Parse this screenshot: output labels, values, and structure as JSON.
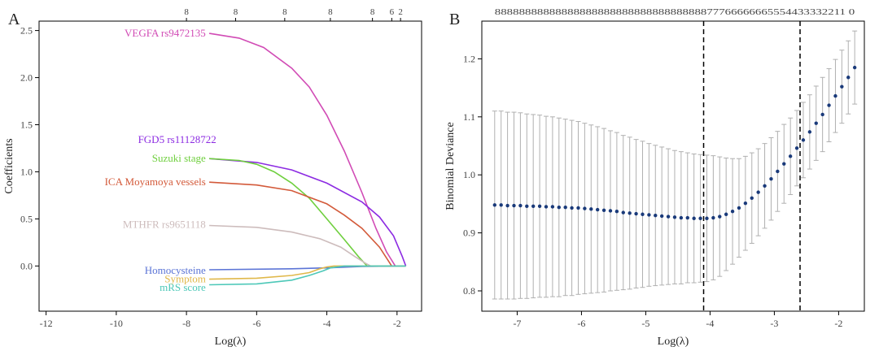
{
  "chart_data": [
    {
      "panel": "A",
      "type": "line",
      "xlabel": "Log(λ)",
      "ylabel": "Coefficients",
      "xlim": [
        -12.2,
        -1.3
      ],
      "ylim": [
        -0.48,
        2.6
      ],
      "xticks": [
        -12,
        -10,
        -8,
        -6,
        -4,
        -2
      ],
      "yticks": [
        0.0,
        0.5,
        1.0,
        1.5,
        2.0,
        2.5
      ],
      "top_axis": {
        "positions": [
          -8,
          -6.6,
          -5.2,
          -3.9,
          -2.7,
          -2.15,
          -1.9
        ],
        "labels": [
          "8",
          "8",
          "8",
          "8",
          "8",
          "6",
          "2"
        ]
      },
      "series": [
        {
          "name": "VEGFA rs9472135",
          "color": "#d14bb5",
          "x": [
            -7.35,
            -6.5,
            -5.8,
            -5.0,
            -4.5,
            -4.0,
            -3.5,
            -3.0,
            -2.6,
            -2.3,
            -2.05
          ],
          "y": [
            2.47,
            2.42,
            2.32,
            2.1,
            1.9,
            1.6,
            1.22,
            0.78,
            0.4,
            0.15,
            0.0
          ]
        },
        {
          "name": "FGD5 rs11128722",
          "color": "#8c2be2",
          "x": [
            -7.35,
            -6.0,
            -5.0,
            -4.0,
            -3.0,
            -2.5,
            -2.1,
            -1.85,
            -1.75
          ],
          "y": [
            1.14,
            1.1,
            1.02,
            0.88,
            0.68,
            0.52,
            0.32,
            0.1,
            0.0
          ]
        },
        {
          "name": "Suzuki stage",
          "color": "#6fcf3e",
          "x": [
            -7.35,
            -6.5,
            -6.0,
            -5.5,
            -5.0,
            -4.5,
            -4.0,
            -3.5,
            -3.1,
            -2.85
          ],
          "y": [
            1.14,
            1.12,
            1.08,
            1.0,
            0.88,
            0.72,
            0.5,
            0.28,
            0.1,
            0.0
          ]
        },
        {
          "name": "ICA Moyamoya vessels",
          "color": "#d35a3a",
          "x": [
            -7.35,
            -6.0,
            -5.0,
            -4.0,
            -3.5,
            -3.0,
            -2.5,
            -2.15
          ],
          "y": [
            0.89,
            0.86,
            0.8,
            0.66,
            0.54,
            0.4,
            0.2,
            0.0
          ]
        },
        {
          "name": "MTHFR rs9651118",
          "color": "#cdbcbc",
          "x": [
            -7.35,
            -6.0,
            -5.0,
            -4.2,
            -3.6,
            -3.2,
            -2.9,
            -2.75
          ],
          "y": [
            0.43,
            0.41,
            0.36,
            0.29,
            0.2,
            0.1,
            0.03,
            0.0
          ]
        },
        {
          "name": "Homocysteine",
          "color": "#5b74d6",
          "x": [
            -7.35,
            -5.0,
            -4.0,
            -3.0,
            -2.0,
            -1.75
          ],
          "y": [
            -0.04,
            -0.03,
            -0.02,
            -0.005,
            0.0,
            0.0
          ]
        },
        {
          "name": "Symptom",
          "color": "#e0b84a",
          "x": [
            -7.35,
            -6.0,
            -5.0,
            -4.5,
            -4.2,
            -4.0,
            -3.8,
            -3.0,
            -2.0,
            -1.75
          ],
          "y": [
            -0.14,
            -0.13,
            -0.1,
            -0.07,
            -0.03,
            -0.01,
            0.0,
            0.0,
            0.0,
            0.0
          ]
        },
        {
          "name": "mRS score",
          "color": "#4dc8b8",
          "x": [
            -7.35,
            -6.0,
            -5.0,
            -4.5,
            -4.1,
            -3.9,
            -3.5,
            -3.0,
            -2.0,
            -1.75
          ],
          "y": [
            -0.2,
            -0.19,
            -0.15,
            -0.1,
            -0.05,
            -0.02,
            0.0,
            0.0,
            0.0,
            0.0
          ]
        }
      ]
    },
    {
      "panel": "B",
      "type": "scatter",
      "xlabel": "Log(λ)",
      "ylabel": "Binomial Deviance",
      "xlim": [
        -7.55,
        -1.6
      ],
      "ylim": [
        0.765,
        1.265
      ],
      "xticks": [
        -7,
        -6,
        -5,
        -4,
        -3,
        -2
      ],
      "yticks": [
        0.8,
        0.9,
        1.0,
        1.1,
        1.2
      ],
      "vlines": [
        -4.1,
        -2.6
      ],
      "top_axis_text": "8888888888888888888888888888888888877766666665554433332211 0",
      "point_color": "#1a3a7a",
      "errorbar_color": "#b0b0b0",
      "x": [
        -7.35,
        -7.25,
        -7.15,
        -7.05,
        -6.95,
        -6.85,
        -6.75,
        -6.65,
        -6.55,
        -6.45,
        -6.35,
        -6.25,
        -6.15,
        -6.05,
        -5.95,
        -5.85,
        -5.75,
        -5.65,
        -5.55,
        -5.45,
        -5.35,
        -5.25,
        -5.15,
        -5.05,
        -4.95,
        -4.85,
        -4.75,
        -4.65,
        -4.55,
        -4.45,
        -4.35,
        -4.25,
        -4.15,
        -4.05,
        -3.95,
        -3.85,
        -3.75,
        -3.65,
        -3.55,
        -3.45,
        -3.35,
        -3.25,
        -3.15,
        -3.05,
        -2.95,
        -2.85,
        -2.75,
        -2.65,
        -2.55,
        -2.45,
        -2.35,
        -2.25,
        -2.15,
        -2.05,
        -1.95,
        -1.85,
        -1.75
      ],
      "y": [
        0.948,
        0.948,
        0.947,
        0.947,
        0.947,
        0.946,
        0.946,
        0.946,
        0.945,
        0.945,
        0.944,
        0.944,
        0.943,
        0.943,
        0.942,
        0.941,
        0.94,
        0.939,
        0.938,
        0.937,
        0.935,
        0.934,
        0.933,
        0.932,
        0.931,
        0.93,
        0.929,
        0.928,
        0.927,
        0.926,
        0.926,
        0.925,
        0.925,
        0.925,
        0.926,
        0.928,
        0.932,
        0.937,
        0.943,
        0.951,
        0.96,
        0.97,
        0.981,
        0.993,
        1.006,
        1.019,
        1.032,
        1.046,
        1.06,
        1.074,
        1.089,
        1.104,
        1.12,
        1.136,
        1.152,
        1.168,
        1.185
      ],
      "yerr": [
        0.162,
        0.162,
        0.161,
        0.161,
        0.16,
        0.159,
        0.158,
        0.157,
        0.156,
        0.155,
        0.154,
        0.152,
        0.151,
        0.149,
        0.147,
        0.145,
        0.143,
        0.141,
        0.138,
        0.136,
        0.133,
        0.131,
        0.128,
        0.126,
        0.123,
        0.121,
        0.119,
        0.117,
        0.115,
        0.114,
        0.112,
        0.111,
        0.11,
        0.109,
        0.107,
        0.103,
        0.097,
        0.091,
        0.085,
        0.081,
        0.078,
        0.075,
        0.073,
        0.071,
        0.069,
        0.068,
        0.066,
        0.065,
        0.065,
        0.064,
        0.064,
        0.064,
        0.063,
        0.063,
        0.063,
        0.063,
        0.063
      ]
    }
  ]
}
